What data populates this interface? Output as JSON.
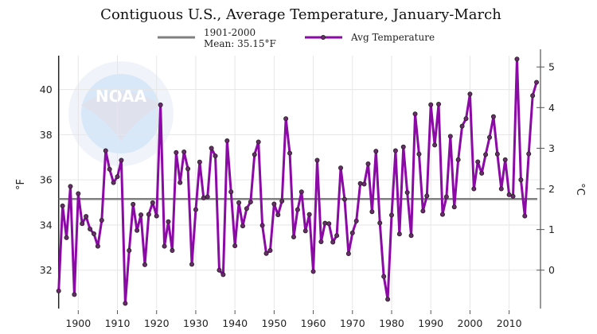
{
  "chart_data": {
    "type": "line",
    "title": "Contiguous U.S., Average Temperature, January-March",
    "ylabel": "°F",
    "y2label": "°C",
    "xlim": [
      1895,
      2018
    ],
    "ylim": [
      30.3,
      41.5
    ],
    "y2lim": [
      -0.95,
      5.28
    ],
    "xticks": [
      1900,
      1910,
      1920,
      1930,
      1940,
      1950,
      1960,
      1970,
      1980,
      1990,
      2000,
      2010
    ],
    "yticks": [
      32,
      34,
      36,
      38,
      40
    ],
    "y2ticks": [
      0,
      1,
      2,
      3,
      4,
      5
    ],
    "grid": true,
    "legend_placement": "top",
    "mean_line": {
      "label_line1": "1901-2000",
      "label_line2": "Mean: 35.15°F",
      "value": 35.15,
      "color": "#808080"
    },
    "series": [
      {
        "name": "Avg Temperature",
        "color": "#8b0aa5",
        "x_start": 1895,
        "values": [
          31.08,
          34.85,
          33.44,
          35.71,
          30.92,
          35.39,
          34.06,
          34.38,
          33.82,
          33.61,
          33.06,
          34.21,
          37.29,
          36.47,
          35.88,
          36.14,
          36.87,
          30.53,
          32.87,
          34.92,
          33.76,
          34.45,
          32.24,
          34.47,
          34.99,
          34.4,
          39.32,
          33.06,
          34.15,
          32.87,
          37.21,
          35.88,
          37.24,
          36.49,
          32.26,
          34.68,
          36.79,
          35.2,
          35.25,
          37.4,
          37.06,
          32.0,
          31.8,
          37.73,
          35.47,
          33.08,
          34.99,
          33.96,
          34.73,
          35.02,
          37.12,
          37.68,
          33.98,
          32.74,
          32.87,
          34.93,
          34.45,
          35.06,
          38.71,
          37.18,
          33.47,
          34.68,
          35.47,
          33.74,
          34.47,
          31.94,
          36.87,
          33.26,
          34.08,
          34.06,
          33.24,
          33.53,
          36.53,
          35.14,
          32.73,
          33.65,
          34.18,
          35.84,
          35.81,
          36.71,
          34.59,
          37.27,
          34.09,
          31.72,
          30.71,
          34.44,
          37.29,
          33.6,
          37.46,
          35.44,
          33.53,
          38.92,
          37.14,
          34.62,
          35.29,
          39.33,
          37.54,
          39.35,
          34.47,
          35.25,
          37.93,
          34.8,
          36.89,
          38.38,
          38.71,
          39.8,
          35.6,
          36.8,
          36.29,
          37.12,
          37.88,
          38.8,
          37.14,
          35.6,
          36.89,
          35.34,
          35.27,
          41.35,
          36.0,
          34.4,
          37.15,
          39.73,
          40.32
        ]
      }
    ]
  },
  "watermark": {
    "text": "NOAA",
    "ring": "NATIONAL OCEANIC AND ATMOSPHERIC ADMINISTRATION · U.S. DEPARTMENT OF COMMERCE"
  }
}
